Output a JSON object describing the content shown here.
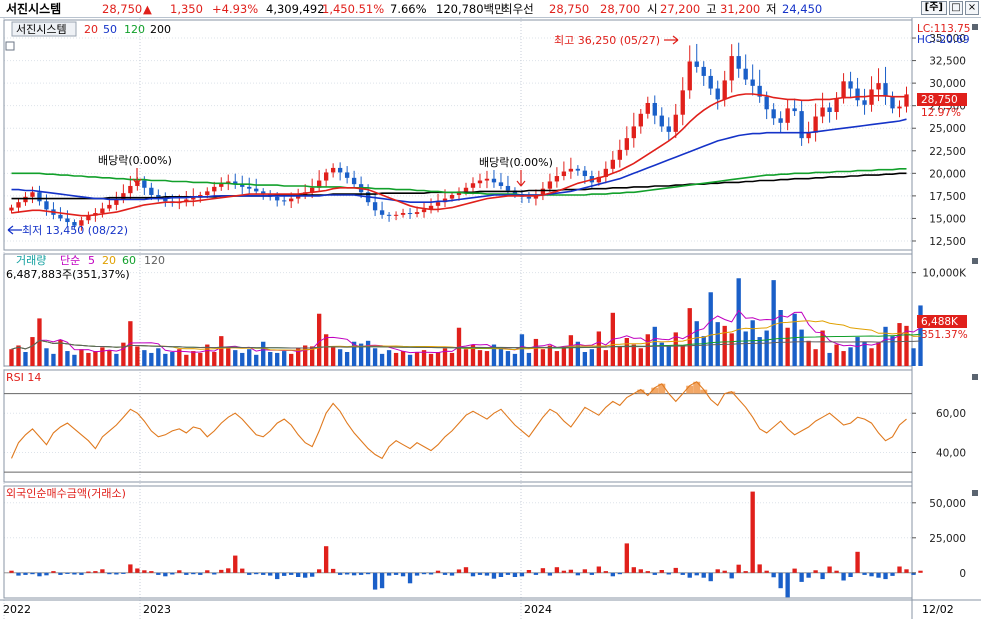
{
  "header": {
    "name": "서진시스템",
    "price": "28,750",
    "arrow": "▲",
    "change": "1,350",
    "change_pct": "+4.93%",
    "volume": "4,309,492",
    "volume_ratio": "1,450.51%",
    "turnover": "7.66%",
    "amount": "120,780백만",
    "best_label": "최우선",
    "best_sell": "28,750",
    "best_buy": "28,700",
    "open_label": "시",
    "open": "27,200",
    "high_label": "고",
    "high": "31,200",
    "low_label": "저",
    "low": "24,450",
    "win_tag": "[주]",
    "win_restore": "□",
    "win_close": "×"
  },
  "price_panel": {
    "label": "서진시스템",
    "ma_labels": [
      {
        "text": "20",
        "color": "#e0201b"
      },
      {
        "text": "50",
        "color": "#1533c8"
      },
      {
        "text": "120",
        "color": "#12a02b"
      },
      {
        "text": "200",
        "color": "#000000"
      }
    ],
    "lc": "LC:113.75",
    "hc": "HC:-20.69",
    "current": "28,750",
    "current_pct": "12.97%",
    "hi_note": "최고 36,250 (05/27)",
    "lo_note": "최저 13,450 (08/22)",
    "div_note_1": "배당락(0.00%)",
    "div_note_2": "배당락(0.00%)"
  },
  "volume_panel": {
    "label_main": "거래량",
    "label_ma": "단순",
    "ma_labels": [
      {
        "text": "5",
        "color": "#c000c0"
      },
      {
        "text": "20",
        "color": "#e0a000"
      },
      {
        "text": "60",
        "color": "#12a02b"
      },
      {
        "text": "120",
        "color": "#606060"
      }
    ],
    "sub": "6,487,883주(351,37%)",
    "current": "6,488K",
    "current_pct": "351.37%"
  },
  "rsi_panel": {
    "label": "RSI 14"
  },
  "foreign_panel": {
    "label": "외국인순매수금액(거래소)"
  },
  "date_labels": [
    "2022",
    "2023",
    "2024",
    "12/02"
  ],
  "colors": {
    "up": "#e0201b",
    "down": "#1a5fc8",
    "ma20": "#e0201b",
    "ma50": "#1533c8",
    "ma120": "#12a02b",
    "ma200": "#000000",
    "rsi": "#e07a1f",
    "grid": "#dde3ea"
  },
  "chart_data": [
    {
      "type": "candlestick",
      "title": "서진시스템",
      "ylim": [
        11500,
        37000
      ],
      "yticks": [
        "12,500",
        "15,000",
        "17,500",
        "20,000",
        "22,500",
        "25,000",
        "27,500",
        "30,000",
        "32,500",
        "35,000"
      ],
      "ytick_values": [
        12500,
        15000,
        17500,
        20000,
        22500,
        25000,
        27500,
        30000,
        32500,
        35000
      ],
      "close": [
        16200,
        16800,
        17400,
        17900,
        16900,
        16000,
        15400,
        15000,
        14600,
        14200,
        14800,
        15300,
        15600,
        16100,
        16500,
        17100,
        17800,
        18600,
        19200,
        18400,
        17600,
        17200,
        16900,
        16700,
        16800,
        17100,
        17300,
        17600,
        18000,
        18500,
        18900,
        19100,
        18800,
        18500,
        18300,
        18000,
        17700,
        17400,
        17000,
        16900,
        17200,
        17500,
        17900,
        18400,
        19200,
        20100,
        20600,
        20100,
        19500,
        18800,
        17900,
        16800,
        15900,
        15400,
        15300,
        15400,
        15600,
        15500,
        15700,
        16000,
        16400,
        16800,
        17200,
        17600,
        18000,
        18400,
        18900,
        19200,
        19400,
        19000,
        18600,
        18100,
        17700,
        17400,
        17200,
        17600,
        18300,
        19100,
        19700,
        20200,
        20500,
        20300,
        19700,
        19000,
        19600,
        20500,
        21500,
        22600,
        23900,
        25200,
        26600,
        27800,
        26400,
        25200,
        24600,
        26500,
        29200,
        32400,
        31800,
        30800,
        29400,
        28200,
        30300,
        33000,
        31600,
        30400,
        29700,
        28500,
        27100,
        26100,
        25600,
        27200,
        26900,
        23900,
        24500,
        26300,
        27300,
        26800,
        28300,
        30200,
        29400,
        28100,
        27600,
        29300,
        30000,
        28500,
        27200,
        27400,
        28750
      ],
      "ma20": [
        15600,
        15700,
        15800,
        15900,
        15900,
        15800,
        15700,
        15600,
        15500,
        15400,
        15300,
        15300,
        15400,
        15500,
        15600,
        15700,
        15900,
        16100,
        16300,
        16500,
        16600,
        16700,
        16800,
        16800,
        16800,
        16900,
        16900,
        17000,
        17100,
        17200,
        17300,
        17400,
        17500,
        17600,
        17700,
        17700,
        17700,
        17700,
        17700,
        17700,
        17700,
        17700,
        17800,
        17900,
        18000,
        18100,
        18300,
        18400,
        18400,
        18400,
        18300,
        18200,
        17900,
        17600,
        17300,
        17000,
        16700,
        16400,
        16200,
        16100,
        16000,
        16000,
        16100,
        16200,
        16400,
        16600,
        16800,
        17000,
        17200,
        17300,
        17400,
        17500,
        17500,
        17500,
        17500,
        17500,
        17600,
        17800,
        18000,
        18300,
        18600,
        18900,
        19100,
        19300,
        19500,
        19700,
        20000,
        20300,
        20700,
        21100,
        21600,
        22100,
        22600,
        23100,
        23600,
        24200,
        24900,
        25700,
        26400,
        27000,
        27500,
        27900,
        28200,
        28500,
        28700,
        28800,
        28800,
        28700,
        28600,
        28400,
        28300,
        28200,
        28200,
        28100,
        28100,
        28200,
        28200,
        28200,
        28300,
        28400,
        28400,
        28500,
        28500,
        28600,
        28600,
        28600,
        28500,
        28500,
        28500
      ],
      "ma50": [
        18200,
        18200,
        18100,
        18100,
        18000,
        17900,
        17800,
        17700,
        17600,
        17500,
        17400,
        17300,
        17200,
        17200,
        17100,
        17100,
        17100,
        17100,
        17100,
        17100,
        17200,
        17200,
        17200,
        17300,
        17300,
        17300,
        17400,
        17400,
        17400,
        17500,
        17500,
        17500,
        17500,
        17500,
        17500,
        17500,
        17500,
        17500,
        17500,
        17500,
        17500,
        17500,
        17500,
        17500,
        17500,
        17600,
        17600,
        17600,
        17600,
        17600,
        17500,
        17400,
        17300,
        17200,
        17100,
        17000,
        16900,
        16800,
        16800,
        16800,
        16800,
        16900,
        16900,
        17000,
        17100,
        17200,
        17300,
        17400,
        17500,
        17600,
        17600,
        17600,
        17600,
        17600,
        17600,
        17600,
        17600,
        17700,
        17800,
        17900,
        18000,
        18200,
        18400,
        18600,
        18800,
        19000,
        19200,
        19400,
        19700,
        20000,
        20300,
        20600,
        20900,
        21200,
        21500,
        21800,
        22100,
        22400,
        22700,
        23000,
        23300,
        23600,
        23800,
        24000,
        24200,
        24300,
        24400,
        24400,
        24500,
        24500,
        24500,
        24500,
        24500,
        24500,
        24500,
        24600,
        24700,
        24800,
        24900,
        25000,
        25100,
        25200,
        25300,
        25400,
        25500,
        25600,
        25700,
        25800,
        26000
      ],
      "ma120": [
        20000,
        20000,
        20000,
        20000,
        20000,
        19900,
        19900,
        19800,
        19800,
        19700,
        19700,
        19600,
        19600,
        19500,
        19500,
        19400,
        19400,
        19300,
        19300,
        19300,
        19200,
        19200,
        19200,
        19100,
        19100,
        19100,
        19000,
        19000,
        19000,
        18900,
        18900,
        18900,
        18800,
        18800,
        18800,
        18700,
        18700,
        18700,
        18700,
        18600,
        18600,
        18600,
        18600,
        18500,
        18500,
        18500,
        18500,
        18500,
        18400,
        18400,
        18400,
        18400,
        18300,
        18300,
        18300,
        18200,
        18200,
        18200,
        18100,
        18100,
        18000,
        18000,
        17900,
        17900,
        17900,
        17800,
        17800,
        17800,
        17700,
        17700,
        17700,
        17700,
        17700,
        17600,
        17600,
        17600,
        17600,
        17600,
        17600,
        17600,
        17600,
        17600,
        17600,
        17700,
        17700,
        17700,
        17800,
        17800,
        17900,
        17900,
        18000,
        18100,
        18200,
        18300,
        18400,
        18500,
        18600,
        18700,
        18800,
        18900,
        19000,
        19100,
        19200,
        19300,
        19400,
        19500,
        19600,
        19700,
        19800,
        19800,
        19900,
        19900,
        20000,
        20000,
        20000,
        20100,
        20100,
        20100,
        20200,
        20200,
        20200,
        20300,
        20300,
        20300,
        20400,
        20400,
        20400,
        20500,
        20500
      ],
      "ma200": [
        17200,
        17200,
        17200,
        17200,
        17200,
        17200,
        17200,
        17200,
        17200,
        17200,
        17200,
        17200,
        17200,
        17200,
        17300,
        17300,
        17300,
        17300,
        17300,
        17300,
        17300,
        17300,
        17400,
        17400,
        17400,
        17400,
        17400,
        17400,
        17400,
        17400,
        17500,
        17500,
        17500,
        17500,
        17500,
        17500,
        17500,
        17500,
        17600,
        17600,
        17600,
        17600,
        17600,
        17600,
        17600,
        17600,
        17700,
        17700,
        17700,
        17700,
        17700,
        17700,
        17700,
        17800,
        17800,
        17800,
        17800,
        17800,
        17800,
        17800,
        17900,
        17900,
        17900,
        17900,
        17900,
        17900,
        17900,
        18000,
        18000,
        18000,
        18000,
        18000,
        18000,
        18000,
        18100,
        18100,
        18100,
        18100,
        18100,
        18200,
        18200,
        18200,
        18200,
        18300,
        18300,
        18300,
        18400,
        18400,
        18400,
        18500,
        18500,
        18500,
        18600,
        18600,
        18600,
        18700,
        18700,
        18800,
        18800,
        18800,
        18900,
        18900,
        19000,
        19000,
        19000,
        19100,
        19100,
        19200,
        19200,
        19200,
        19300,
        19300,
        19400,
        19400,
        19400,
        19500,
        19500,
        19600,
        19600,
        19600,
        19700,
        19700,
        19800,
        19800,
        19800,
        19900,
        19900,
        20000,
        20000
      ]
    },
    {
      "type": "bar",
      "title": "거래량",
      "ylim": [
        0,
        12000
      ],
      "yticks": [
        "10,000K"
      ],
      "ytick_values": [
        10000
      ],
      "values": [
        1800,
        2200,
        1500,
        3100,
        5100,
        1900,
        1300,
        2800,
        1600,
        1200,
        1800,
        1400,
        1600,
        2000,
        1700,
        1300,
        2500,
        4800,
        2100,
        1700,
        1400,
        1900,
        1300,
        1500,
        1800,
        1200,
        1600,
        1400,
        2300,
        1500,
        3200,
        1900,
        1700,
        1400,
        1800,
        1200,
        2600,
        1500,
        1400,
        1600,
        1300,
        1900,
        2200,
        2100,
        5600,
        3400,
        2000,
        1800,
        1500,
        2600,
        2400,
        2700,
        1900,
        1300,
        1700,
        1400,
        1600,
        1200,
        1500,
        1700,
        1300,
        1500,
        1900,
        1400,
        4100,
        1800,
        2300,
        1700,
        1600,
        2300,
        1900,
        1600,
        1300,
        3400,
        1400,
        2900,
        1800,
        2200,
        1600,
        2000,
        3300,
        2600,
        1500,
        1800,
        3700,
        1700,
        5700,
        2100,
        3000,
        2300,
        1900,
        3400,
        4200,
        2500,
        2100,
        3600,
        2200,
        6200,
        4800,
        3200,
        7900,
        4700,
        4300,
        3500,
        9400,
        3700,
        4900,
        3100,
        3800,
        9200,
        6000,
        4100,
        5600,
        3900,
        2700,
        1800,
        3800,
        1400,
        2300,
        1600,
        2000,
        3100,
        2600,
        1900,
        2500,
        4200,
        3200,
        4600,
        4300,
        1900,
        6488
      ],
      "dir": [
        1,
        1,
        -1,
        1,
        1,
        -1,
        -1,
        1,
        -1,
        -1,
        1,
        1,
        1,
        1,
        1,
        -1,
        1,
        1,
        1,
        -1,
        -1,
        -1,
        -1,
        -1,
        1,
        1,
        1,
        1,
        1,
        1,
        1,
        1,
        -1,
        -1,
        -1,
        -1,
        -1,
        -1,
        -1,
        -1,
        1,
        1,
        1,
        1,
        1,
        1,
        1,
        -1,
        -1,
        -1,
        -1,
        -1,
        -1,
        -1,
        -1,
        1,
        1,
        -1,
        1,
        1,
        1,
        1,
        1,
        1,
        1,
        1,
        1,
        1,
        1,
        -1,
        -1,
        -1,
        -1,
        -1,
        -1,
        1,
        1,
        1,
        1,
        1,
        1,
        -1,
        -1,
        -1,
        1,
        1,
        1,
        1,
        1,
        1,
        1,
        1,
        -1,
        -1,
        -1,
        1,
        1,
        1,
        -1,
        -1,
        -1,
        -1,
        1,
        1,
        -1,
        -1,
        -1,
        -1,
        -1,
        -1,
        -1,
        1,
        -1,
        -1,
        1,
        1,
        1,
        -1,
        1,
        1,
        -1,
        -1,
        -1,
        1,
        1,
        -1,
        -1,
        1,
        1
      ]
    },
    {
      "type": "line",
      "title": "RSI 14",
      "ylim": [
        25,
        82
      ],
      "yticks": [
        "40,00",
        "60,00"
      ],
      "ytick_values": [
        40,
        60
      ],
      "values": [
        37,
        45,
        49,
        52,
        48,
        44,
        50,
        53,
        55,
        52,
        49,
        46,
        42,
        48,
        51,
        54,
        58,
        62,
        60,
        56,
        51,
        48,
        49,
        51,
        52,
        50,
        53,
        52,
        48,
        51,
        55,
        58,
        60,
        57,
        53,
        49,
        48,
        51,
        55,
        57,
        54,
        49,
        45,
        43,
        51,
        60,
        65,
        61,
        55,
        50,
        46,
        42,
        39,
        37,
        43,
        46,
        44,
        42,
        45,
        43,
        41,
        44,
        48,
        51,
        55,
        59,
        61,
        59,
        57,
        60,
        62,
        58,
        54,
        51,
        48,
        53,
        58,
        62,
        60,
        56,
        53,
        58,
        63,
        61,
        59,
        63,
        66,
        64,
        68,
        70,
        72,
        69,
        73,
        75,
        70,
        66,
        70,
        74,
        76,
        72,
        67,
        64,
        70,
        71,
        67,
        63,
        58,
        52,
        50,
        53,
        56,
        52,
        49,
        51,
        53,
        56,
        58,
        60,
        57,
        54,
        55,
        58,
        57,
        55,
        50,
        46,
        48,
        54,
        57
      ],
      "ref_lines": [
        30,
        70
      ]
    },
    {
      "type": "bar",
      "title": "외국인순매수금액(거래소)",
      "ylim": [
        -18000,
        62000
      ],
      "yticks": [
        "0",
        "25,000",
        "50,000"
      ],
      "ytick_values": [
        0,
        25000,
        50000
      ],
      "values": [
        1500,
        -2000,
        -1500,
        -1000,
        -2500,
        -1800,
        1200,
        -1500,
        -800,
        -1200,
        -1500,
        900,
        1200,
        2500,
        -1000,
        -1200,
        -800,
        6000,
        3100,
        1800,
        1200,
        -1500,
        -2500,
        -1200,
        1800,
        -1500,
        -1000,
        -1500,
        1800,
        -1200,
        2100,
        3200,
        12300,
        3000,
        -1500,
        -1000,
        -1500,
        -2000,
        -4500,
        -2200,
        -1500,
        -3000,
        -3500,
        -2800,
        2500,
        19000,
        2800,
        -1500,
        -1200,
        -1800,
        -1500,
        -1000,
        -12000,
        -11000,
        -2000,
        -1500,
        -2500,
        -7500,
        -2000,
        -1000,
        -1200,
        1500,
        -1500,
        -2000,
        2400,
        4000,
        -2500,
        -1500,
        -2000,
        -4200,
        -3000,
        -1500,
        -3000,
        -2500,
        2000,
        -1500,
        3300,
        -2000,
        4000,
        1500,
        2200,
        -1800,
        2500,
        -1500,
        4500,
        1200,
        -2500,
        -1000,
        21000,
        4000,
        2500,
        1200,
        -1500,
        2000,
        -1200,
        3500,
        -1500,
        -3500,
        -1800,
        -3500,
        -6000,
        2500,
        1500,
        -4000,
        5800,
        1200,
        58000,
        6000,
        1500,
        -3200,
        -11000,
        -17500,
        3000,
        -6500,
        -3500,
        1800,
        -4500,
        4500,
        1500,
        -5500,
        -3000,
        15000,
        -1500,
        -2500,
        -3500,
        -4500,
        -2200,
        4500,
        2500,
        -1500,
        1500
      ],
      "ref_lines": [
        0
      ]
    }
  ]
}
